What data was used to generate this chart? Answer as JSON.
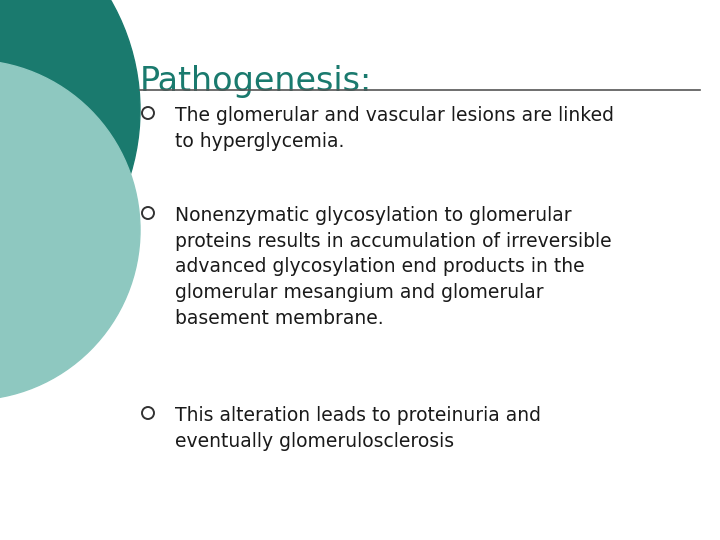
{
  "title": "Pathogenesis:",
  "title_color": "#1a7a6e",
  "title_fontsize": 24,
  "background_color": "#ffffff",
  "bullet_color": "#1a1a1a",
  "bullet_fontsize": 13.5,
  "bullet_symbol_color": "#333333",
  "horizontal_line_color": "#555555",
  "bullets": [
    "The glomerular and vascular lesions are linked\nto hyperglycemia.",
    "Nonenzymatic glycosylation to glomerular\nproteins results in accumulation of irreversible\nadvanced glycosylation end products in the\nglomerular mesangium and glomerular\nbasement membrane.",
    "This alteration leads to proteinuria and\neventually glomerulosclerosis"
  ],
  "corner_circle_color1": "#1a7a6e",
  "corner_circle_color2": "#8ec8c0",
  "figsize": [
    7.2,
    5.4
  ],
  "dpi": 100
}
